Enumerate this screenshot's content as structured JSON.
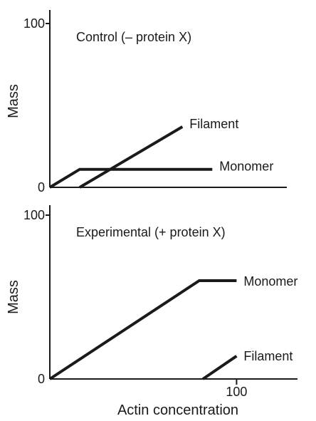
{
  "chart_data": [
    {
      "type": "line",
      "title": "Control (– protein X)",
      "ylabel": "Mass",
      "xlabel": "",
      "xlim": [
        0,
        125
      ],
      "ylim": [
        0,
        100
      ],
      "y_ticks": [
        {
          "value": 0,
          "label": "0"
        },
        {
          "value": 100,
          "label": "100"
        }
      ],
      "x_ticks": [],
      "series": [
        {
          "name": "Filament",
          "points": [
            [
              16,
              0
            ],
            [
              71,
              37
            ]
          ]
        },
        {
          "name": "Monomer",
          "points": [
            [
              0,
              0
            ],
            [
              16,
              11
            ],
            [
              87,
              11
            ]
          ]
        }
      ]
    },
    {
      "type": "line",
      "title": "Experimental (+ protein X)",
      "ylabel": "Mass",
      "xlabel": "Actin concentration",
      "xlim": [
        0,
        132
      ],
      "ylim": [
        0,
        100
      ],
      "y_ticks": [
        {
          "value": 0,
          "label": "0"
        },
        {
          "value": 100,
          "label": "100"
        }
      ],
      "x_ticks": [
        {
          "value": 100,
          "label": "100"
        }
      ],
      "series": [
        {
          "name": "Monomer",
          "points": [
            [
              0,
              0
            ],
            [
              80,
              60
            ],
            [
              100,
              60
            ]
          ]
        },
        {
          "name": "Filament",
          "points": [
            [
              82,
              0
            ],
            [
              100,
              14
            ]
          ]
        }
      ]
    }
  ]
}
